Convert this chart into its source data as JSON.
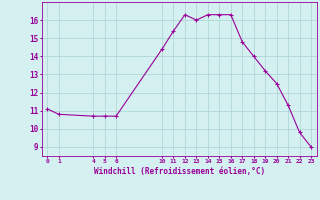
{
  "x": [
    0,
    1,
    4,
    5,
    6,
    10,
    11,
    12,
    13,
    14,
    15,
    16,
    17,
    18,
    19,
    20,
    21,
    22,
    23
  ],
  "y": [
    11.1,
    10.8,
    10.7,
    10.7,
    10.7,
    14.4,
    15.4,
    16.3,
    16.0,
    16.3,
    16.3,
    16.3,
    14.8,
    14.0,
    13.2,
    12.5,
    11.3,
    9.8,
    9.0
  ],
  "xticks": [
    0,
    1,
    4,
    5,
    6,
    10,
    11,
    12,
    13,
    14,
    15,
    16,
    17,
    18,
    19,
    20,
    21,
    22,
    23
  ],
  "yticks": [
    9,
    10,
    11,
    12,
    13,
    14,
    15,
    16
  ],
  "ylim": [
    8.5,
    17.0
  ],
  "xlim": [
    -0.5,
    23.5
  ],
  "xlabel": "Windchill (Refroidissement éolien,°C)",
  "line_color": "#990099",
  "marker": "+",
  "bg_color": "#d4f0f0",
  "grid_color": "#b0d8d8",
  "title": ""
}
